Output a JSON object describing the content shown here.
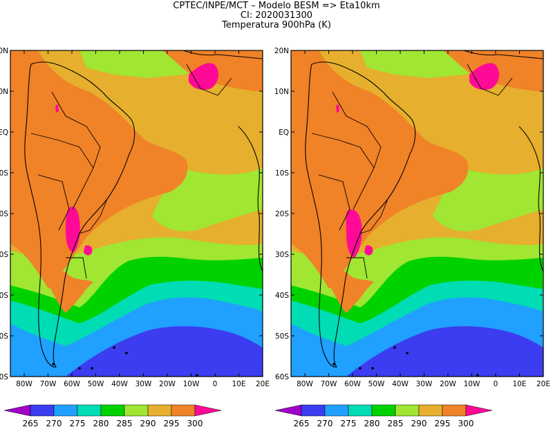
{
  "titles": {
    "line1": "CPTEC/INPE/MCT –  Modelo BESM => Eta10km",
    "line2": "CI: 2020031300",
    "line3": "Temperatura 900hPa (K)"
  },
  "lat_labels": [
    "20N",
    "10N",
    "EQ",
    "10S",
    "20S",
    "30S",
    "40S",
    "50S",
    "60S"
  ],
  "lon_labels": [
    "80W",
    "70W",
    "60W",
    "50W",
    "40W",
    "30W",
    "20W",
    "10W",
    "0",
    "10E",
    "20E"
  ],
  "colorbar": {
    "labels": [
      "265",
      "270",
      "275",
      "280",
      "285",
      "290",
      "295",
      "300"
    ],
    "colors": [
      "#a000c8",
      "#3c3cf0",
      "#20a0ff",
      "#00dcb4",
      "#00d200",
      "#a0e632",
      "#e6af2d",
      "#f08228",
      "#ff0a96"
    ]
  },
  "map_colors": {
    "k300plus": "#ff0a96",
    "k295_300": "#f08228",
    "k290_295": "#e6af2d",
    "k285_290": "#a0e632",
    "k280_285": "#00d200",
    "k275_280": "#00dcb4",
    "k270_275": "#20a0ff",
    "k265_270": "#3c3cf0"
  }
}
